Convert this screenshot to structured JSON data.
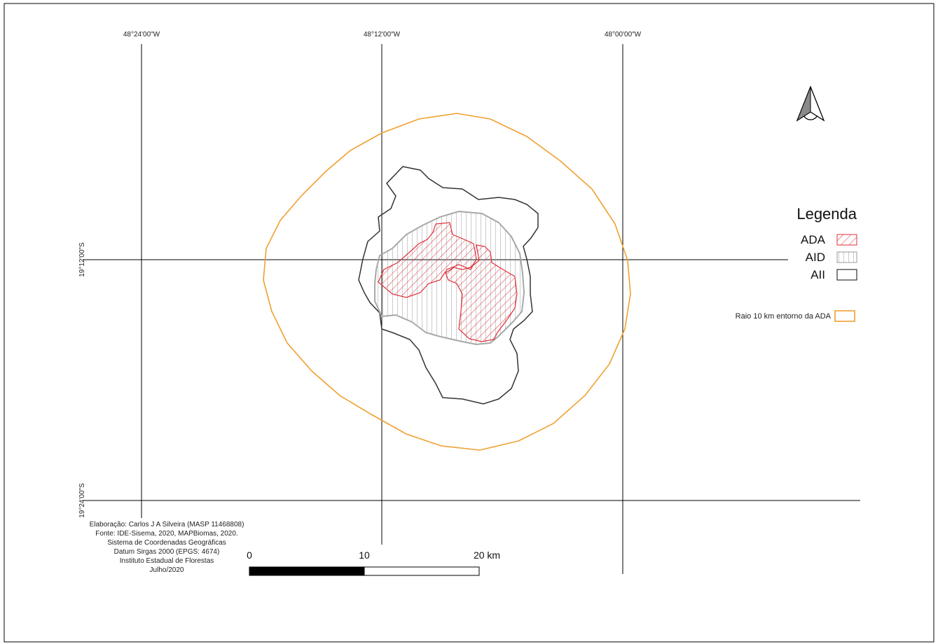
{
  "map": {
    "longitude_labels": [
      "48°24'00\"W",
      "48°12'00\"W",
      "48°00'00\"W"
    ],
    "latitude_labels": [
      "19°12'00\"S",
      "19°24'00\"S"
    ],
    "colors": {
      "ADA": "#e0303a",
      "AID": "#9a9a9a",
      "AII": "#333333",
      "buffer": "#f0a030"
    }
  },
  "north_arrow": {
    "icon": "north-arrow-icon"
  },
  "legend": {
    "title": "Legenda",
    "items": [
      {
        "label": "ADA",
        "pattern": "diagonal-hatch"
      },
      {
        "label": "AID",
        "pattern": "vertical-hatch"
      },
      {
        "label": "AII",
        "pattern": "outline"
      }
    ],
    "buffer_label": "Raio 10 km entorno da ADA"
  },
  "credits": {
    "lines": [
      "Elaboração: Carlos J A Silveira (MASP 11468808)",
      "Fonte: IDE-Sisema, 2020, MAPBiomas, 2020.",
      "Sistema de Coordenadas Geográficas",
      "Datum Sirgas 2000 (EPGS: 4674)",
      "Instituto Estadual de Florestas",
      "Julho/2020"
    ]
  },
  "scale_bar": {
    "labels": [
      "0",
      "10",
      "20 km"
    ]
  }
}
